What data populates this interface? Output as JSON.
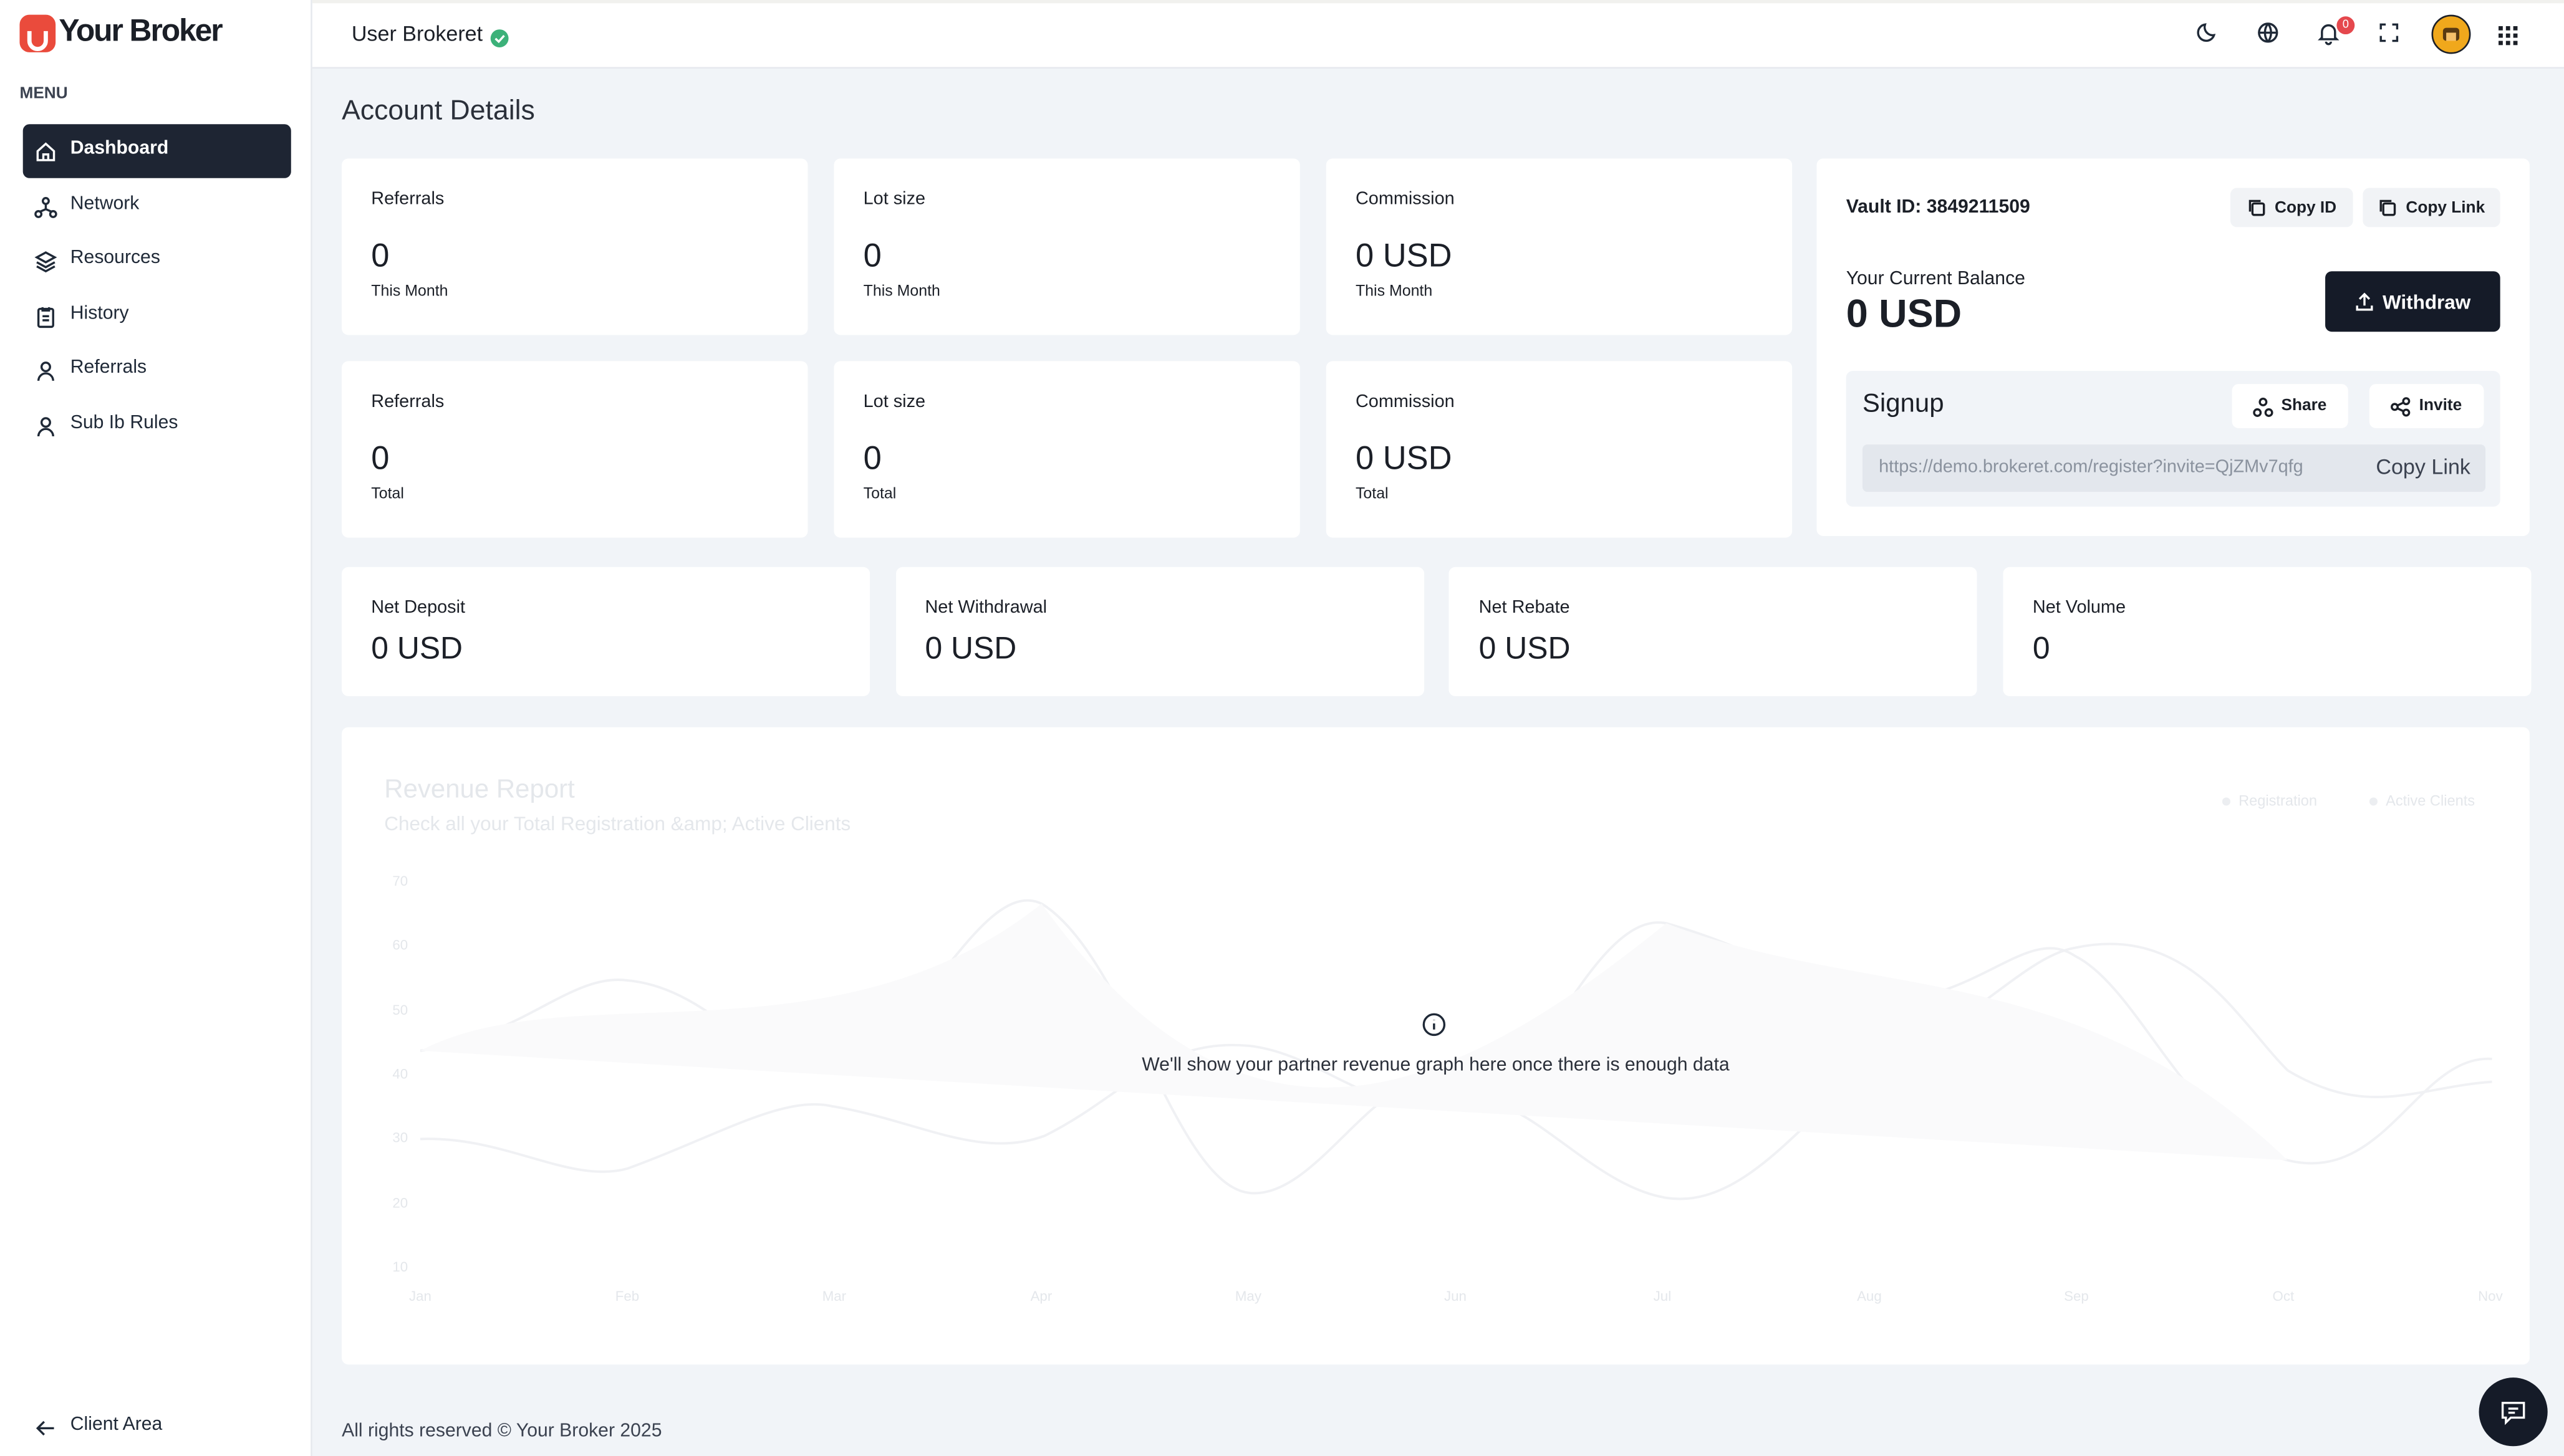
{
  "brand": "Your Broker",
  "sidebar": {
    "menu_label": "MENU",
    "items": [
      "Dashboard",
      "Network",
      "Resources",
      "History",
      "Referrals",
      "Sub Ib Rules"
    ],
    "footer_link": "Client Area"
  },
  "header": {
    "user": "User Brokeret",
    "notifications": 0
  },
  "page_title": "Account Details",
  "stats": [
    {
      "label": "Referrals",
      "value": "0",
      "period": "This Month"
    },
    {
      "label": "Lot size",
      "value": "0",
      "period": "This Month"
    },
    {
      "label": "Commission",
      "value": "0 USD",
      "period": "This Month"
    },
    {
      "label": "Referrals",
      "value": "0",
      "period": "Total"
    },
    {
      "label": "Lot size",
      "value": "0",
      "period": "Total"
    },
    {
      "label": "Commission",
      "value": "0 USD",
      "period": "Total"
    }
  ],
  "vault": {
    "id_label": "Vault ID: 3849211509",
    "copy_id": "Copy ID",
    "copy_link": "Copy Link",
    "balance_label": "Your Current Balance",
    "balance": "0 USD",
    "withdraw": "Withdraw",
    "signup": "Signup",
    "share": "Share",
    "invite": "Invite",
    "url": "https://demo.brokeret.com/register?invite=QjZMv7qfg",
    "copy_url": "Copy Link"
  },
  "summary": [
    {
      "label": "Net Deposit",
      "value": "0 USD"
    },
    {
      "label": "Net Withdrawal",
      "value": "0 USD"
    },
    {
      "label": "Net Rebate",
      "value": "0 USD"
    },
    {
      "label": "Net Volume",
      "value": "0"
    }
  ],
  "revenue_report": {
    "title": "Revenue Report",
    "subtitle": "Check all your Total Registration &amp; Active Clients",
    "legend": [
      "Registration",
      "Active Clients"
    ],
    "yticks": [
      70,
      60,
      50,
      40,
      30,
      20,
      10
    ],
    "months": [
      "Jan",
      "Feb",
      "Mar",
      "Apr",
      "May",
      "Jun",
      "Jul",
      "Aug",
      "Sep",
      "Oct",
      "Nov"
    ],
    "empty_message": "We'll show your partner revenue graph here once there is enough data"
  },
  "footer": "All rights reserved © Your Broker 2025"
}
